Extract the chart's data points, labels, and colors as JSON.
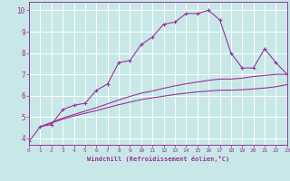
{
  "background_color": "#c8e8e8",
  "grid_color": "#ffffff",
  "line_color": "#993399",
  "xlabel": "Windchill (Refroidissement éolien,°C)",
  "xlim": [
    0,
    23
  ],
  "ylim": [
    3.7,
    10.4
  ],
  "xticks": [
    0,
    1,
    2,
    3,
    4,
    5,
    6,
    7,
    8,
    9,
    10,
    11,
    12,
    13,
    14,
    15,
    16,
    17,
    18,
    19,
    20,
    21,
    22,
    23
  ],
  "yticks": [
    4,
    5,
    6,
    7,
    8,
    9,
    10
  ],
  "line1_x": [
    0,
    1,
    2,
    3,
    4,
    5,
    6,
    7,
    8,
    9,
    10,
    11,
    12,
    13,
    14,
    15,
    16,
    17,
    18,
    19,
    20,
    21,
    22,
    23
  ],
  "line1_y": [
    3.85,
    4.55,
    4.65,
    5.35,
    5.55,
    5.65,
    6.25,
    6.55,
    7.55,
    7.65,
    8.4,
    8.75,
    9.35,
    9.45,
    9.85,
    9.85,
    10.0,
    9.55,
    8.0,
    7.3,
    7.3,
    8.2,
    7.55,
    7.0
  ],
  "line2_x": [
    1,
    2,
    3,
    4,
    5,
    6,
    7,
    8,
    9,
    10,
    11,
    12,
    13,
    14,
    15,
    16,
    17,
    18,
    19,
    20,
    21,
    22,
    23
  ],
  "line2_y": [
    4.55,
    4.75,
    4.95,
    5.12,
    5.28,
    5.44,
    5.62,
    5.8,
    5.97,
    6.12,
    6.22,
    6.35,
    6.46,
    6.56,
    6.64,
    6.72,
    6.78,
    6.78,
    6.82,
    6.9,
    6.95,
    7.0,
    7.0
  ],
  "line3_x": [
    1,
    2,
    3,
    4,
    5,
    6,
    7,
    8,
    9,
    10,
    11,
    12,
    13,
    14,
    15,
    16,
    17,
    18,
    19,
    20,
    21,
    22,
    23
  ],
  "line3_y": [
    4.55,
    4.72,
    4.9,
    5.05,
    5.18,
    5.3,
    5.44,
    5.58,
    5.7,
    5.82,
    5.9,
    5.98,
    6.06,
    6.12,
    6.18,
    6.22,
    6.26,
    6.26,
    6.28,
    6.32,
    6.36,
    6.42,
    6.52
  ]
}
